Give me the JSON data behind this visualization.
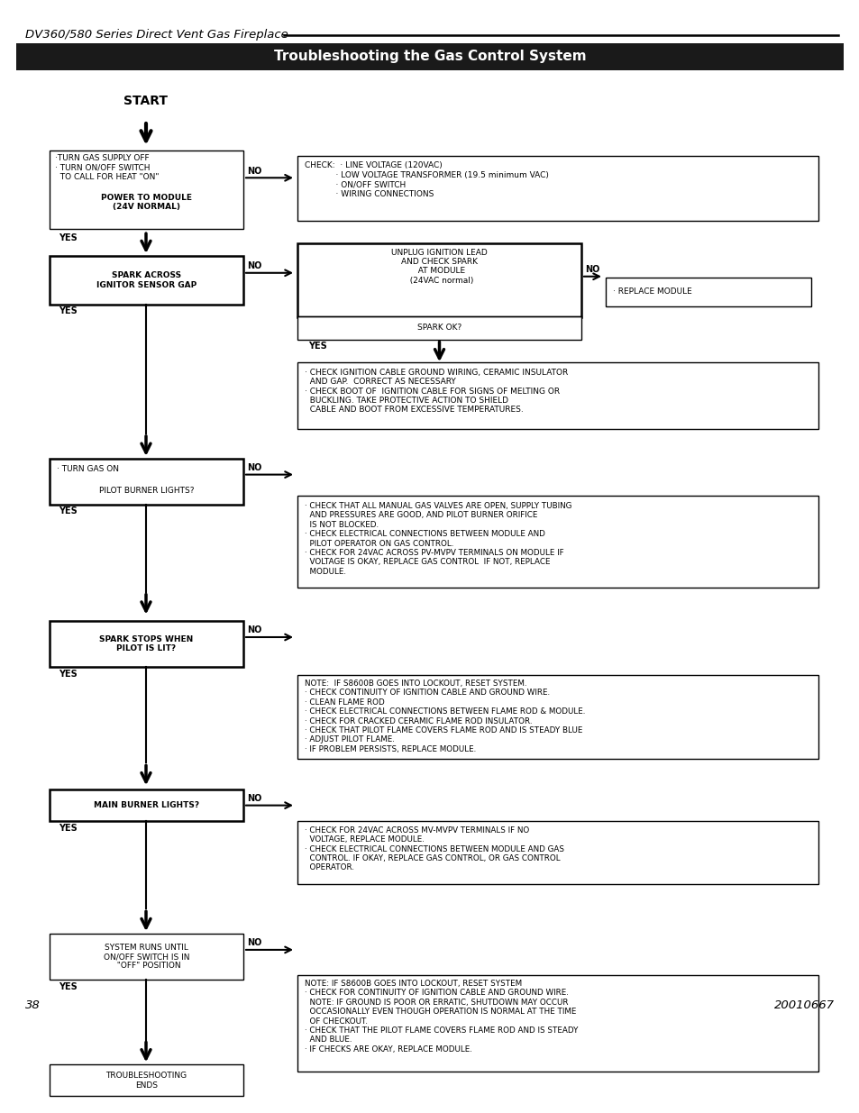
{
  "page_title": "DV360/580 Series Direct Vent Gas Fireplace",
  "header_title": "Troubleshooting the Gas Control System",
  "header_bg": "#1a1a1a",
  "header_fg": "#ffffff",
  "page_number": "38",
  "doc_number": "20010667",
  "bg_color": "#ffffff"
}
